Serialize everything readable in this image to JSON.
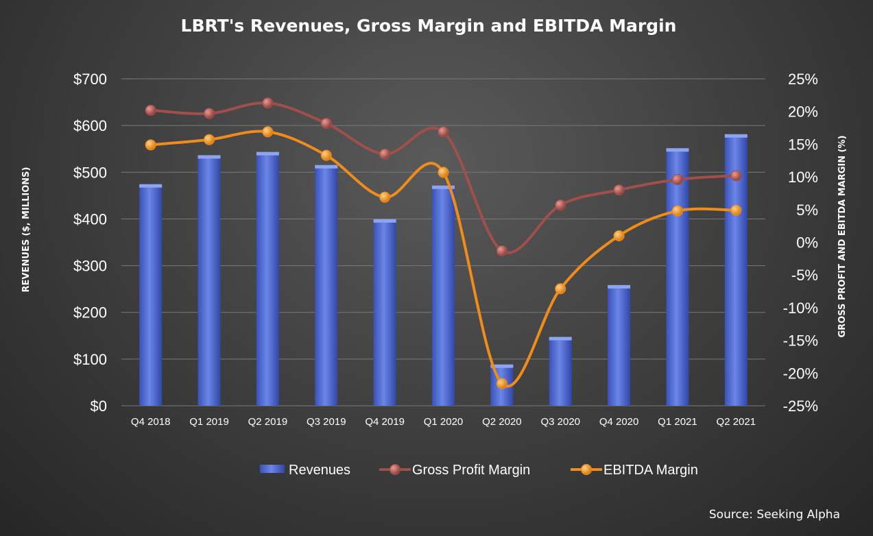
{
  "chart_data": {
    "type": "bar",
    "title": "LBRT's Revenues, Gross Margin and EBITDA Margin",
    "source": "Source: Seeking Alpha",
    "ylabel_left": "REVENUES ($, MILLIONS)",
    "ylabel_right": "GROSS PROFIT AND EBITDA MARGIN (%)",
    "ylim_left": [
      0,
      700
    ],
    "ylim_right": [
      -25,
      25
    ],
    "yticks_left": [
      "$0",
      "$100",
      "$200",
      "$300",
      "$400",
      "$500",
      "$600",
      "$700"
    ],
    "yticks_right": [
      "-25%",
      "-20%",
      "-15%",
      "-10%",
      "-5%",
      "0%",
      "5%",
      "10%",
      "15%",
      "20%",
      "25%"
    ],
    "grid": true,
    "legend_position": "bottom",
    "categories": [
      "Q4 2018",
      "Q1 2019",
      "Q2 2019",
      "Q3 2019",
      "Q4 2019",
      "Q1 2020",
      "Q2 2020",
      "Q3 2020",
      "Q4 2020",
      "Q1 2021",
      "Q2 2021"
    ],
    "series": [
      {
        "name": "Revenues",
        "type": "bar",
        "axis": "left",
        "color": "#4f6bd0",
        "values": [
          473,
          535,
          542,
          514,
          398,
          470,
          87,
          146,
          257,
          550,
          580
        ]
      },
      {
        "name": "Gross Profit Margin",
        "type": "line",
        "axis": "right",
        "color": "#a04f4a",
        "values": [
          20.2,
          19.7,
          21.3,
          18.2,
          13.5,
          16.9,
          -1.3,
          5.7,
          8.0,
          9.6,
          10.2
        ]
      },
      {
        "name": "EBITDA Margin",
        "type": "line",
        "axis": "right",
        "color": "#f08c1a",
        "values": [
          14.9,
          15.7,
          16.9,
          13.3,
          6.9,
          10.7,
          -21.6,
          -7.1,
          1.0,
          4.8,
          4.9
        ]
      }
    ]
  }
}
